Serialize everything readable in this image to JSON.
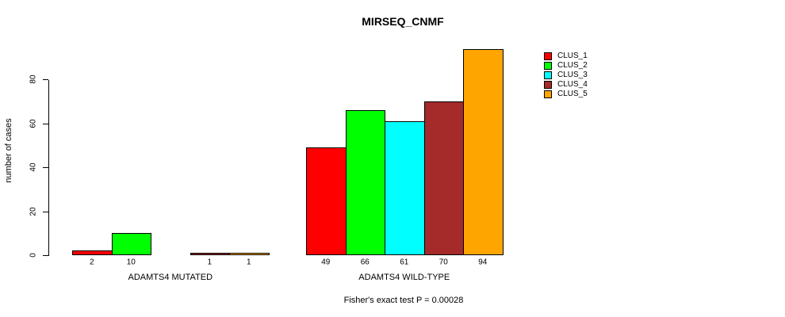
{
  "chart_data": {
    "type": "bar",
    "title": "MIRSEQ_CNMF",
    "ylabel": "number of cases",
    "xlabel": "",
    "yticks": [
      0,
      20,
      40,
      60,
      80
    ],
    "ylim": [
      0,
      94
    ],
    "grid": false,
    "legend_position": "right-outside",
    "categories": [
      "ADAMTS4 MUTATED",
      "ADAMTS4 WILD-TYPE"
    ],
    "series": [
      {
        "name": "CLUS_1",
        "color": "#FF0000",
        "values": [
          2,
          49
        ],
        "value_labels": [
          "2",
          "49"
        ]
      },
      {
        "name": "CLUS_2",
        "color": "#00FF00",
        "values": [
          10,
          66
        ],
        "value_labels": [
          "10",
          "66"
        ]
      },
      {
        "name": "CLUS_3",
        "color": "#00FFFF",
        "values": [
          0,
          61
        ],
        "value_labels": [
          "",
          "61"
        ]
      },
      {
        "name": "CLUS_4",
        "color": "#A52A2A",
        "values": [
          1,
          70
        ],
        "value_labels": [
          "1",
          "70"
        ]
      },
      {
        "name": "CLUS_5",
        "color": "#FFA500",
        "values": [
          1,
          94
        ],
        "value_labels": [
          "1",
          "94"
        ]
      }
    ],
    "annotation": "Fisher's exact test P = 0.00028"
  },
  "colors": {
    "background": "#FFFFFF",
    "axis": "#000000",
    "text": "#000000"
  }
}
